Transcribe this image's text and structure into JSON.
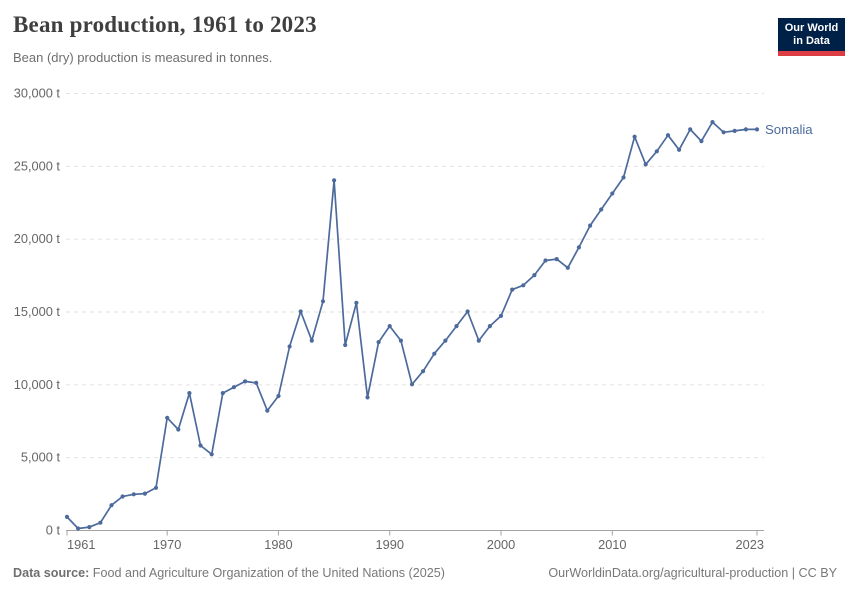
{
  "header": {
    "title": "Bean production, 1961 to 2023",
    "subtitle": "Bean (dry) production is measured in tonnes."
  },
  "logo": {
    "line1": "Our World",
    "line2": "in Data",
    "bg_color": "#002147",
    "accent_color": "#dc3d43"
  },
  "footer": {
    "datasource_label": "Data source:",
    "datasource_text": " Food and Agriculture Organization of the United Nations (2025)",
    "link": "OurWorldinData.org/agricultural-production",
    "separator": " | ",
    "license": "CC BY"
  },
  "chart_data": {
    "type": "line",
    "title": "Bean production, 1961 to 2023",
    "subtitle": "Bean (dry) production is measured in tonnes.",
    "xlabel": "",
    "ylabel": "",
    "xlim": [
      1961,
      2023
    ],
    "ylim": [
      0,
      30000
    ],
    "grid": "horizontal-dashed",
    "legend": "end-of-line-label",
    "x_ticks": [
      1961,
      1970,
      1980,
      1990,
      2000,
      2010,
      2023
    ],
    "x_tick_labels": [
      "1961",
      "1970",
      "1980",
      "1990",
      "2000",
      "2010",
      "2023"
    ],
    "y_ticks": [
      0,
      5000,
      10000,
      15000,
      20000,
      25000,
      30000
    ],
    "y_tick_labels": [
      "0 t",
      "5,000 t",
      "10,000 t",
      "15,000 t",
      "20,000 t",
      "25,000 t",
      "30,000 t"
    ],
    "series": [
      {
        "name": "Somalia",
        "color": "#4c6a9c",
        "x": [
          1961,
          1962,
          1963,
          1964,
          1965,
          1966,
          1967,
          1968,
          1969,
          1970,
          1971,
          1972,
          1973,
          1974,
          1975,
          1976,
          1977,
          1978,
          1979,
          1980,
          1981,
          1982,
          1983,
          1984,
          1985,
          1986,
          1987,
          1988,
          1989,
          1990,
          1991,
          1992,
          1993,
          1994,
          1995,
          1996,
          1997,
          1998,
          1999,
          2000,
          2001,
          2002,
          2003,
          2004,
          2005,
          2006,
          2007,
          2008,
          2009,
          2010,
          2011,
          2012,
          2013,
          2014,
          2015,
          2016,
          2017,
          2018,
          2019,
          2020,
          2021,
          2022,
          2023
        ],
        "values": [
          900,
          100,
          200,
          500,
          1700,
          2300,
          2450,
          2500,
          2900,
          7700,
          6900,
          9400,
          5800,
          5200,
          9400,
          9800,
          10200,
          10100,
          8200,
          9200,
          12600,
          15000,
          13000,
          15700,
          24000,
          12700,
          15600,
          9100,
          12900,
          14000,
          13000,
          10000,
          10900,
          12100,
          13000,
          14000,
          15000,
          13000,
          14000,
          14700,
          16500,
          16800,
          17500,
          18500,
          18600,
          18000,
          19400,
          20900,
          22000,
          23100,
          24200,
          27000,
          25100,
          26000,
          27100,
          26100,
          27500,
          26700,
          28000,
          27300,
          27400,
          27500,
          27500
        ]
      }
    ]
  }
}
